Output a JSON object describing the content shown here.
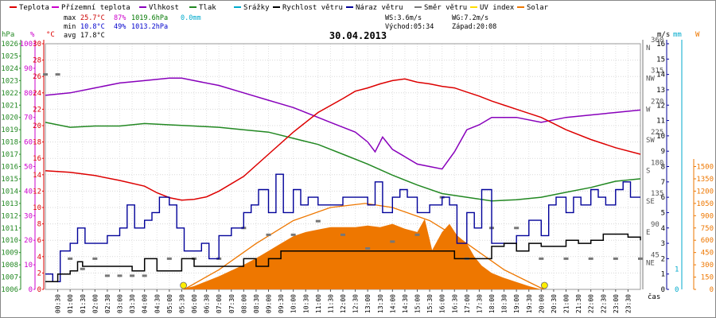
{
  "chart_data": {
    "type": "line",
    "title": "30.04.2013",
    "legend": [
      {
        "key": "teplota",
        "label": "Teplota",
        "color": "#dd0000"
      },
      {
        "key": "prizemni",
        "label": "Přízemní teplota",
        "color": "#cc00cc"
      },
      {
        "key": "vlhkost",
        "label": "Vlhkost",
        "color": "#8800bb"
      },
      {
        "key": "tlak",
        "label": "Tlak",
        "color": "#228822"
      },
      {
        "key": "srazky",
        "label": "Srážky",
        "color": "#00aacc"
      },
      {
        "key": "rychlost",
        "label": "Rychlost větru",
        "color": "#000000"
      },
      {
        "key": "naraz",
        "label": "Náraz větru",
        "color": "#000099"
      },
      {
        "key": "smer",
        "label": "Směr větru",
        "color": "#777777"
      },
      {
        "key": "uv",
        "label": "UV index",
        "color": "#ffdd00"
      },
      {
        "key": "solar",
        "label": "Solar",
        "color": "#ee7700"
      }
    ],
    "stats": {
      "max_label": "max",
      "max_temp": "25.7°C",
      "max_hum": "87%",
      "max_press": "1019.6hPa",
      "rain": "0.0mm",
      "min_label": "min",
      "min_temp": "10.8°C",
      "min_hum": "49%",
      "min_press": "1013.2hPa",
      "avg_label": "avg",
      "avg_temp": "17.8°C"
    },
    "wind_info": {
      "ws": "WS:3.6m/s",
      "wg": "WG:7.2m/s",
      "sunrise": "Východ:05:34",
      "sunset": "Západ:20:08"
    },
    "axes": {
      "hpa": {
        "unit": "hPa",
        "min": 1006,
        "max": 1026,
        "ticks": [
          "1006",
          "1007",
          "1008",
          "1009",
          "1010",
          "1011",
          "1012",
          "1013",
          "1014",
          "1015",
          "1016",
          "1017",
          "1018",
          "1019",
          "1020",
          "1021",
          "1022",
          "1023",
          "1024",
          "1025",
          "1026"
        ]
      },
      "percent": {
        "unit": "%",
        "min": 0,
        "max": 100,
        "ticks": [
          "0",
          "10",
          "20",
          "30",
          "40",
          "50",
          "60",
          "70",
          "80",
          "90",
          "100"
        ]
      },
      "celsius": {
        "unit": "°C",
        "min": 0,
        "max": 30,
        "ticks": [
          "0",
          "2",
          "4",
          "6",
          "8",
          "10",
          "12",
          "14",
          "16",
          "18",
          "20",
          "22",
          "24",
          "26",
          "28",
          "30"
        ]
      },
      "direction": {
        "unit": "",
        "min": 0,
        "max": 360,
        "ticks": [
          "45",
          "90",
          "135",
          "180",
          "225",
          "270",
          "315",
          "360"
        ],
        "labels": [
          "NE",
          "E",
          "SE",
          "S",
          "SW",
          "W",
          "NW",
          "N"
        ]
      },
      "ms": {
        "unit": "m/s",
        "min": 0,
        "max": 16,
        "ticks": [
          "0",
          "1",
          "2",
          "3",
          "4",
          "5",
          "6",
          "7",
          "8",
          "9",
          "10",
          "11",
          "12",
          "13",
          "14",
          "15",
          "16"
        ]
      },
      "mm": {
        "unit": "mm",
        "min": 0,
        "max": 1,
        "ticks": [
          "0",
          "1"
        ]
      },
      "w": {
        "unit": "W",
        "min": 0,
        "max": 1500,
        "ticks": [
          "0",
          "150",
          "300",
          "450",
          "600",
          "750",
          "900",
          "1050",
          "1200",
          "1350",
          "1500"
        ]
      }
    },
    "xlabel": "čas",
    "x_ticks": [
      "00:30",
      "01:00",
      "01:30",
      "02:00",
      "02:30",
      "03:00",
      "03:30",
      "04:00",
      "04:30",
      "05:00",
      "05:30",
      "06:00",
      "06:30",
      "07:00",
      "07:30",
      "08:00",
      "08:30",
      "09:00",
      "09:30",
      "10:00",
      "10:30",
      "11:00",
      "11:30",
      "12:00",
      "12:30",
      "13:00",
      "13:30",
      "14:00",
      "14:30",
      "15:00",
      "15:30",
      "16:00",
      "16:30",
      "17:00",
      "17:30",
      "18:00",
      "18:30",
      "19:00",
      "19:30",
      "20:00",
      "20:30",
      "21:00",
      "21:30",
      "22:00",
      "22:30",
      "23:00",
      "23:30"
    ],
    "sun_markers_hours": [
      5.57,
      20.13
    ],
    "series": {
      "teplota_c": {
        "hours": [
          0,
          1,
          2,
          3,
          4,
          4.5,
          5,
          5.5,
          6,
          6.5,
          7,
          8,
          9,
          10,
          11,
          12,
          12.5,
          13,
          13.5,
          14,
          14.5,
          15,
          15.5,
          16,
          16.5,
          17,
          17.5,
          18,
          19,
          20,
          21,
          22,
          23,
          24
        ],
        "values": [
          14.5,
          14.3,
          13.9,
          13.3,
          12.6,
          11.8,
          11.2,
          10.9,
          11.0,
          11.3,
          12.0,
          13.8,
          16.5,
          19.2,
          21.6,
          23.3,
          24.2,
          24.6,
          25.1,
          25.5,
          25.7,
          25.3,
          25.1,
          24.8,
          24.6,
          24.1,
          23.6,
          23.0,
          22.0,
          21.0,
          19.5,
          18.3,
          17.3,
          16.5
        ]
      },
      "vlhkost_pct": {
        "hours": [
          0,
          1,
          2,
          3,
          4,
          5,
          5.5,
          6,
          7,
          8,
          9,
          10,
          11,
          11.5,
          12,
          12.5,
          13,
          13.3,
          13.6,
          14,
          14.5,
          15,
          15.5,
          16,
          16.5,
          17,
          17.5,
          18,
          19,
          20,
          20.5,
          21,
          22,
          23,
          24
        ],
        "values": [
          79,
          80,
          82,
          84,
          85,
          86,
          86,
          85,
          83,
          80,
          77,
          74,
          70,
          68,
          66,
          64,
          60,
          56,
          62,
          57,
          54,
          51,
          50,
          49,
          56,
          65,
          67,
          70,
          70,
          68,
          69,
          70,
          71,
          72,
          73
        ]
      },
      "tlak_hpa": {
        "hours": [
          0,
          1,
          2,
          3,
          4,
          5,
          6,
          7,
          8,
          9,
          10,
          11,
          12,
          13,
          14,
          15,
          16,
          17,
          18,
          19,
          20,
          21,
          22,
          23,
          24
        ],
        "values": [
          1019.6,
          1019.2,
          1019.3,
          1019.3,
          1019.5,
          1019.4,
          1019.3,
          1019.2,
          1019.0,
          1018.8,
          1018.3,
          1017.8,
          1017.0,
          1016.2,
          1015.3,
          1014.5,
          1013.8,
          1013.5,
          1013.2,
          1013.3,
          1013.5,
          1013.9,
          1014.3,
          1014.8,
          1015.0
        ]
      },
      "rychlost_ms": {
        "hours": [
          0,
          0.5,
          1,
          1.3,
          1.5,
          2,
          3,
          3.5,
          4,
          4.5,
          5,
          5.5,
          6,
          6.5,
          7,
          7.5,
          8,
          8.5,
          9,
          9.5,
          10,
          10.5,
          11,
          11.5,
          12,
          12.5,
          13,
          13.5,
          14,
          14.5,
          15,
          15.5,
          16,
          16.5,
          17,
          17.5,
          18,
          18.5,
          19,
          19.5,
          20,
          20.5,
          21,
          21.5,
          22,
          22.5,
          23,
          23.5,
          24
        ],
        "values": [
          0.5,
          1,
          1.2,
          1.8,
          1.5,
          1.5,
          1.5,
          1.2,
          2,
          1.2,
          1.2,
          2,
          1.5,
          1.5,
          1.5,
          1.5,
          2,
          1.5,
          2,
          2.5,
          2.5,
          2.5,
          2.5,
          2.5,
          2.5,
          2.5,
          2.5,
          2.5,
          2.5,
          2.5,
          2.5,
          2.5,
          2.5,
          2,
          2,
          2,
          2.8,
          3,
          2.5,
          3,
          2.8,
          2.8,
          3.2,
          3,
          3.2,
          3.6,
          3.6,
          3.4,
          3.2
        ]
      },
      "naraz_ms": {
        "hours": [
          0,
          0.3,
          0.6,
          1,
          1.3,
          1.6,
          2,
          2.5,
          3,
          3.3,
          3.6,
          4,
          4.3,
          4.6,
          5,
          5.3,
          5.6,
          6,
          6.3,
          6.6,
          7,
          7.5,
          8,
          8.3,
          8.6,
          9,
          9.3,
          9.6,
          10,
          10.3,
          10.6,
          11,
          11.5,
          12,
          12.5,
          13,
          13.3,
          13.6,
          14,
          14.3,
          14.6,
          15,
          15.5,
          16,
          16.3,
          16.6,
          17,
          17.3,
          17.6,
          18,
          18.5,
          19,
          19.5,
          20,
          20.3,
          20.6,
          21,
          21.3,
          21.6,
          22,
          22.3,
          22.6,
          23,
          23.3,
          23.6,
          24
        ],
        "values": [
          1,
          0.5,
          2.5,
          3,
          4,
          3,
          3,
          3.5,
          4,
          5.5,
          4,
          4.5,
          5,
          6,
          5.5,
          4,
          2.5,
          2.5,
          3,
          2,
          3.5,
          4,
          5,
          5.5,
          6.5,
          5,
          7.5,
          5,
          6.5,
          5.5,
          6,
          5.5,
          5.5,
          6,
          6,
          5.5,
          7,
          5,
          6,
          6.5,
          6,
          5,
          5.5,
          6,
          5.5,
          3,
          5,
          4,
          6.5,
          3,
          3,
          3.5,
          4.5,
          3.5,
          5.5,
          6,
          5,
          6,
          5.5,
          6.5,
          6,
          5.5,
          6.5,
          7,
          6,
          6
        ]
      },
      "solar_w": {
        "hours": [
          5.5,
          6,
          6.5,
          7,
          7.5,
          8,
          8.5,
          9,
          9.5,
          10,
          10.5,
          11,
          11.5,
          12,
          12.5,
          13,
          13.5,
          14,
          14.5,
          15,
          15.3,
          15.6,
          16,
          16.3,
          16.6,
          17,
          17.3,
          17.6,
          18,
          18.5,
          19,
          19.5,
          20
        ],
        "values": [
          0,
          40,
          100,
          160,
          230,
          300,
          380,
          470,
          560,
          650,
          700,
          730,
          760,
          760,
          760,
          780,
          760,
          800,
          740,
          700,
          860,
          480,
          700,
          800,
          660,
          560,
          400,
          290,
          200,
          140,
          90,
          40,
          0
        ]
      },
      "solar_theory_w": {
        "hours": [
          5.6,
          7,
          8.5,
          10,
          11.5,
          12.9,
          14,
          15.5,
          17,
          18.5,
          20.1
        ],
        "values": [
          0,
          240,
          560,
          840,
          1000,
          1050,
          1000,
          840,
          560,
          240,
          0
        ]
      },
      "smer_deg": {
        "hours": [
          0,
          0.5,
          1,
          1.5,
          2,
          2.5,
          3,
          3.5,
          4,
          5,
          6,
          7,
          8,
          9,
          10,
          11,
          12,
          13,
          14,
          15,
          16,
          17,
          18,
          19,
          20,
          21,
          22,
          23,
          24
        ],
        "values": [
          315,
          315,
          45,
          30,
          45,
          20,
          20,
          20,
          20,
          45,
          45,
          45,
          90,
          80,
          80,
          100,
          80,
          60,
          70,
          80,
          135,
          45,
          90,
          90,
          45,
          45,
          45,
          45,
          45
        ]
      }
    }
  }
}
